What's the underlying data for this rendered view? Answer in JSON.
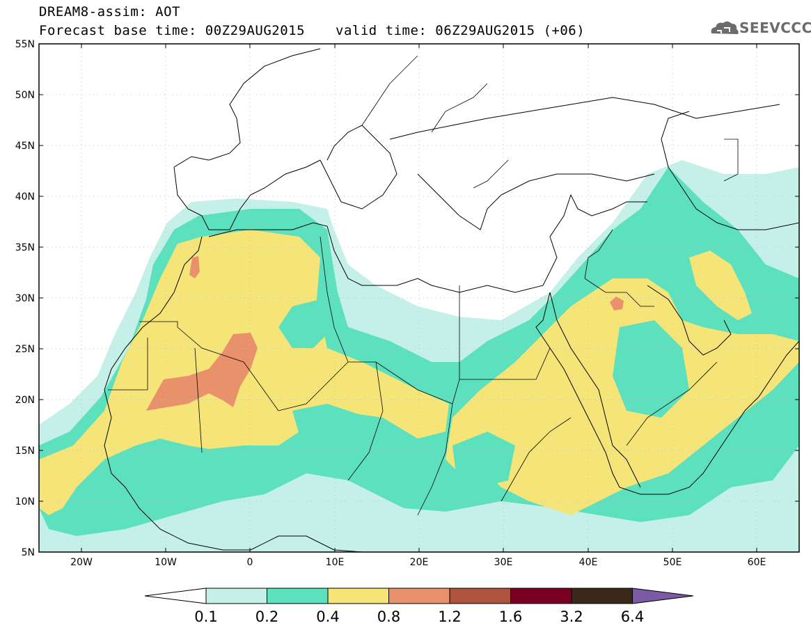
{
  "header": {
    "line1": "DREAM8-assim: AOT",
    "line2": "Forecast base time: 00Z29AUG2015",
    "valid": "valid time: 06Z29AUG2015 (+06)",
    "logo_text": "SEEVCCC"
  },
  "map": {
    "lat_labels": [
      "55N",
      "50N",
      "45N",
      "40N",
      "35N",
      "30N",
      "25N",
      "20N",
      "15N",
      "10N",
      "5N"
    ],
    "lon_labels": [
      "20W",
      "10W",
      "0",
      "10E",
      "20E",
      "30E",
      "40E",
      "50E",
      "60E"
    ],
    "extent": {
      "lon_min": -25,
      "lon_max": 65,
      "lat_min": 5,
      "lat_max": 55
    },
    "field": "dust aerosol optical thickness (AOT)",
    "features": [
      "dust plume over western Sahara",
      "max over Mauritania/Mali",
      "plume over Arabian Peninsula and Iraq"
    ]
  },
  "colorbar": {
    "levels": [
      "0.1",
      "0.2",
      "0.4",
      "0.8",
      "1.2",
      "1.6",
      "3.2",
      "6.4"
    ],
    "colors": [
      "#c5f0e8",
      "#5ce0bd",
      "#f5e477",
      "#e9916a",
      "#b0533e",
      "#7a0024",
      "#3a2818",
      "#7b5ba6"
    ]
  }
}
